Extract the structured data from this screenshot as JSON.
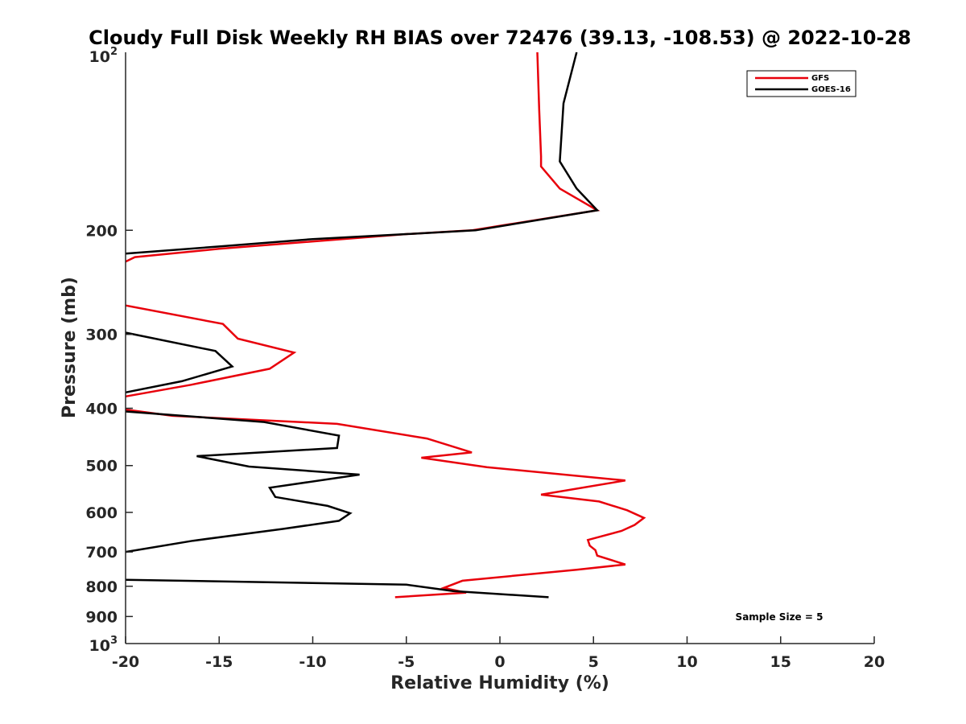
{
  "chart_data": {
    "type": "line",
    "title": "Cloudy Full Disk Weekly RH BIAS over 72476 (39.13, -108.53) @ 2022-10-28",
    "xlabel": "Relative Humidity (%)",
    "ylabel": "Pressure (mb)",
    "xlim": [
      -20,
      20
    ],
    "ylim": [
      100,
      1000
    ],
    "y_scale": "log",
    "y_reversed": true,
    "grid": false,
    "legend_position": "top-right",
    "x_ticks": [
      -20,
      -15,
      -10,
      -5,
      0,
      5,
      10,
      15,
      20
    ],
    "x_tick_labels": [
      "-20",
      "-15",
      "-10",
      "-5",
      "0",
      "5",
      "10",
      "15",
      "20"
    ],
    "y_ticks": [
      200,
      300,
      400,
      500,
      600,
      700,
      800,
      900
    ],
    "y_tick_labels": [
      "200",
      "300",
      "400",
      "500",
      "600",
      "700",
      "800",
      "900"
    ],
    "y_top_label": {
      "base": "10",
      "exp": "2"
    },
    "y_bottom_label": {
      "base": "10",
      "exp": "3"
    },
    "annotation": "Sample Size = 5",
    "series": [
      {
        "name": "GFS",
        "color": "#e8000b",
        "points": [
          [
            2.0,
            100
          ],
          [
            2.1,
            125
          ],
          [
            2.2,
            150
          ],
          [
            2.2,
            156
          ],
          [
            3.2,
            170
          ],
          [
            5.2,
            185
          ],
          [
            -1.5,
            200
          ],
          [
            -5.0,
            203
          ],
          [
            -15.0,
            215
          ],
          [
            -19.5,
            222
          ],
          [
            -20.0,
            226
          ],
          [
            null,
            null
          ],
          [
            -20.0,
            268
          ],
          [
            -14.8,
            288
          ],
          [
            -14.0,
            305
          ],
          [
            -11.0,
            322
          ],
          [
            -12.3,
            343
          ],
          [
            -16.5,
            365
          ],
          [
            -20.0,
            382
          ],
          [
            null,
            null
          ],
          [
            -20.0,
            402
          ],
          [
            -17.5,
            412
          ],
          [
            -8.7,
            425
          ],
          [
            -3.9,
            450
          ],
          [
            -1.5,
            475
          ],
          [
            -4.2,
            485
          ],
          [
            -0.7,
            503
          ],
          [
            6.7,
            530
          ],
          [
            2.2,
            560
          ],
          [
            5.3,
            575
          ],
          [
            6.8,
            595
          ],
          [
            7.7,
            613
          ],
          [
            7.2,
            630
          ],
          [
            6.5,
            645
          ],
          [
            4.7,
            668
          ],
          [
            4.8,
            683
          ],
          [
            5.1,
            695
          ],
          [
            5.2,
            710
          ],
          [
            6.7,
            735
          ],
          [
            4.1,
            750
          ],
          [
            -2.0,
            783
          ],
          [
            -3.0,
            805
          ],
          [
            -1.8,
            820
          ],
          [
            -5.6,
            835
          ]
        ]
      },
      {
        "name": "GOES-16",
        "color": "#000000",
        "points": [
          [
            4.1,
            100
          ],
          [
            3.4,
            122
          ],
          [
            3.2,
            153
          ],
          [
            4.1,
            170
          ],
          [
            5.2,
            185
          ],
          [
            -1.3,
            200
          ],
          [
            -5.0,
            203
          ],
          [
            -10.0,
            207
          ],
          [
            -15.0,
            213
          ],
          [
            -20.0,
            219
          ],
          [
            null,
            null
          ],
          [
            -20.0,
            298
          ],
          [
            -15.2,
            320
          ],
          [
            -14.3,
            340
          ],
          [
            -17.0,
            360
          ],
          [
            -20.0,
            376
          ],
          [
            null,
            null
          ],
          [
            -20.0,
            405
          ],
          [
            -12.6,
            422
          ],
          [
            -8.6,
            445
          ],
          [
            -8.7,
            467
          ],
          [
            -16.2,
            482
          ],
          [
            -13.4,
            502
          ],
          [
            -7.5,
            518
          ],
          [
            -12.3,
            545
          ],
          [
            -12.0,
            565
          ],
          [
            -9.2,
            585
          ],
          [
            -8.0,
            602
          ],
          [
            -8.6,
            620
          ],
          [
            -11.6,
            640
          ],
          [
            -16.4,
            670
          ],
          [
            -20.0,
            700
          ],
          [
            null,
            null
          ],
          [
            -20.0,
            780
          ],
          [
            -5.0,
            795
          ],
          [
            -2.5,
            815
          ],
          [
            2.6,
            835
          ]
        ]
      }
    ]
  }
}
